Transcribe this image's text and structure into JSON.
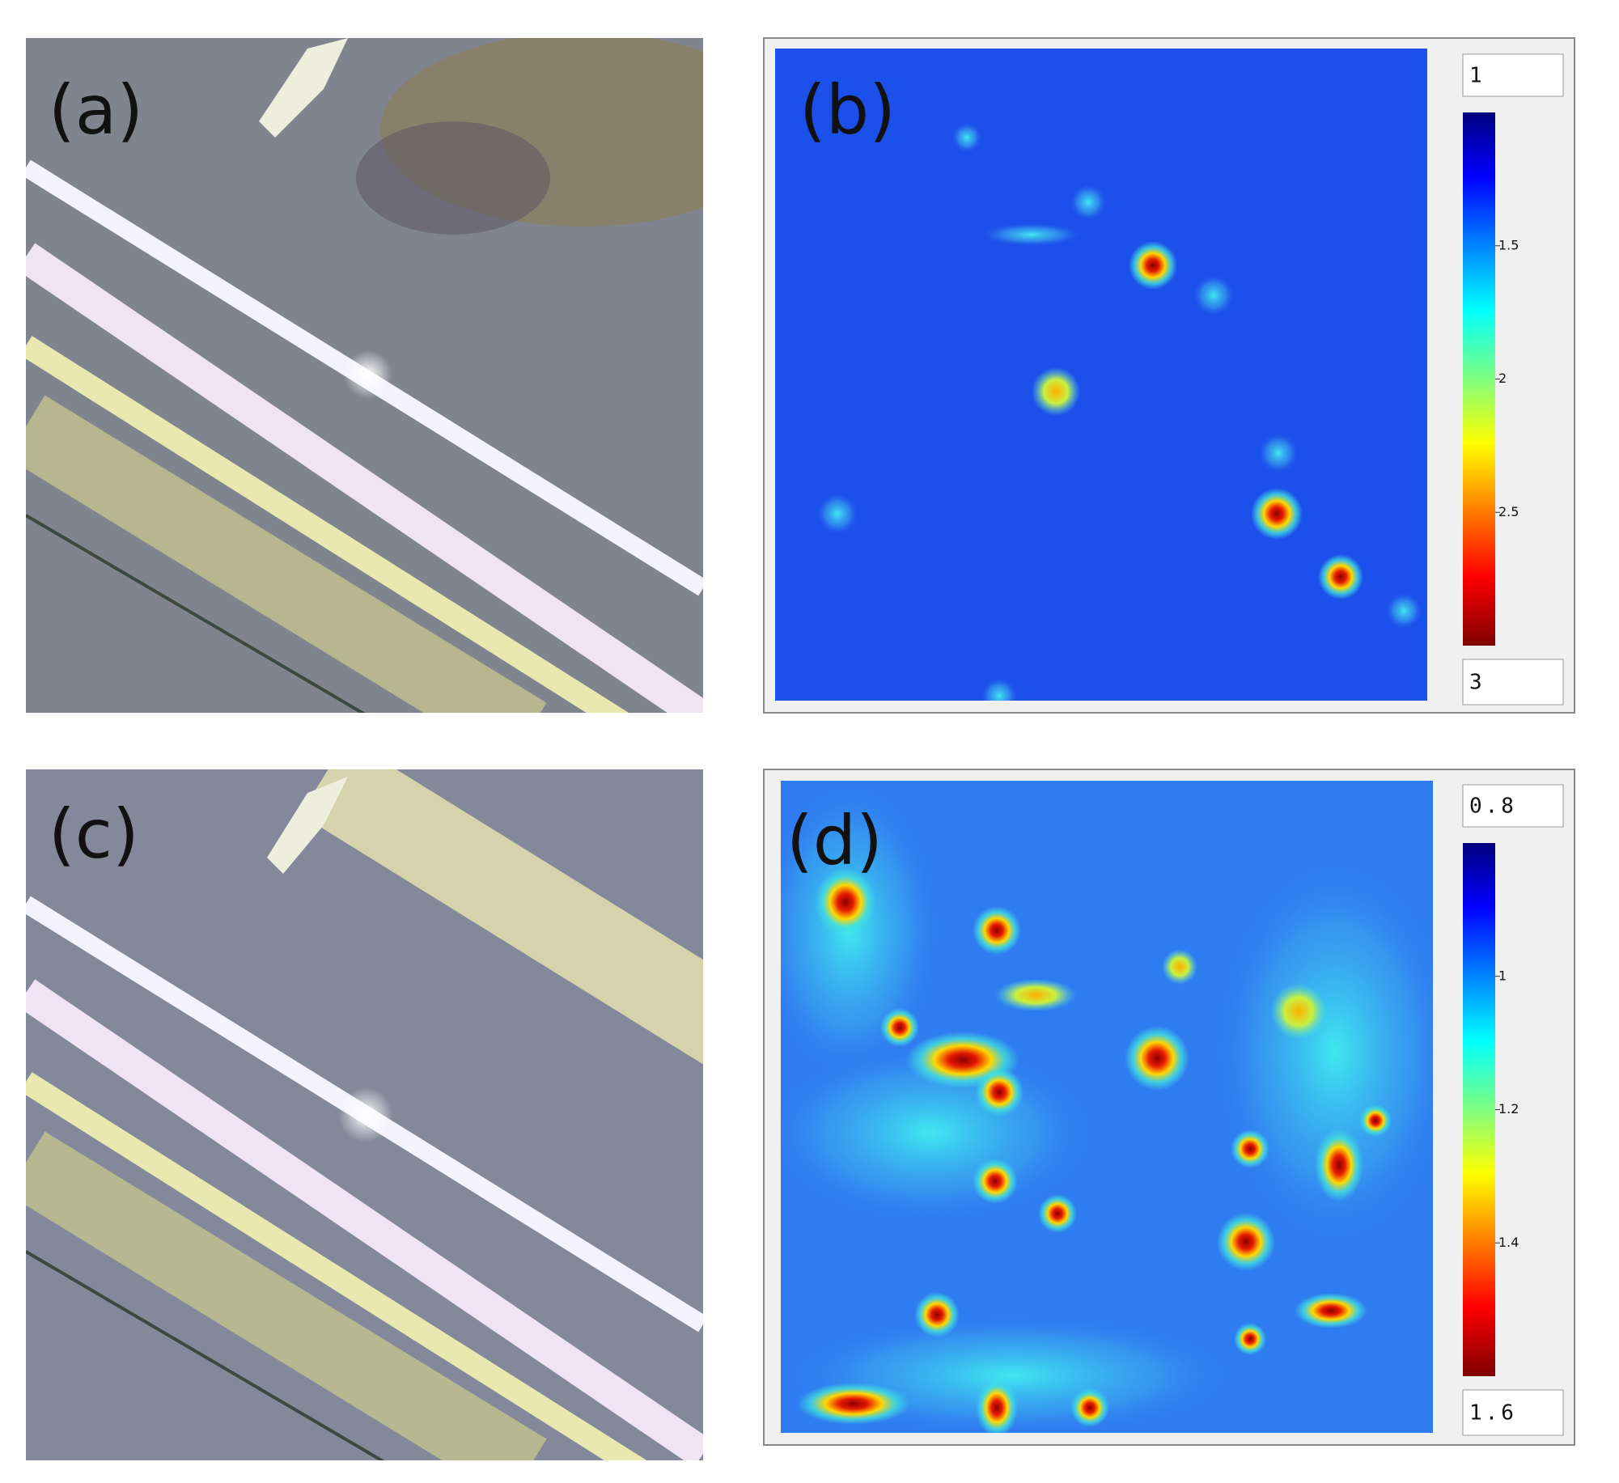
{
  "panels": [
    {
      "label": "(a)"
    },
    {
      "label": "(b)",
      "colorbar": {
        "min": 1,
        "max": 3,
        "ticks": [
          1.5,
          2,
          2.5
        ]
      }
    },
    {
      "label": "(c)"
    },
    {
      "label": "(d)",
      "colorbar": {
        "min": 0.8,
        "max": 1.6,
        "ticks": [
          1,
          1.2,
          1.4
        ]
      }
    }
  ]
}
